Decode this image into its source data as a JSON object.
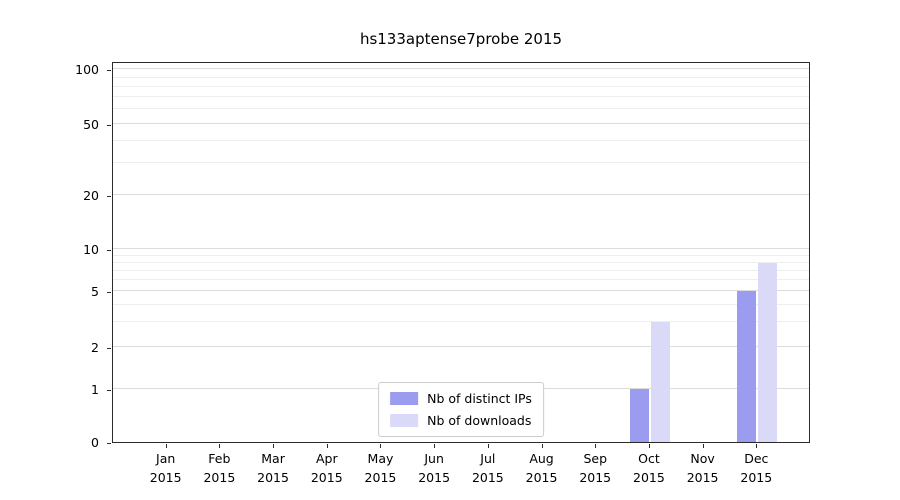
{
  "chart_data": {
    "type": "bar",
    "title": "hs133aptense7probe 2015",
    "categories": [
      "Jan",
      "Feb",
      "Mar",
      "Apr",
      "May",
      "Jun",
      "Jul",
      "Aug",
      "Sep",
      "Oct",
      "Nov",
      "Dec"
    ],
    "year_label": "2015",
    "series": [
      {
        "name": "Nb of distinct IPs",
        "color": "#9b9bf0",
        "values": [
          0,
          0,
          0,
          0,
          0,
          0,
          0,
          0,
          0,
          1,
          0,
          5
        ]
      },
      {
        "name": "Nb of downloads",
        "color": "#dadaf8",
        "values": [
          0,
          0,
          0,
          0,
          0,
          0,
          0,
          0,
          0,
          3,
          0,
          8
        ]
      }
    ],
    "y_ticks": [
      0,
      1,
      2,
      5,
      10,
      20,
      50,
      100
    ],
    "y_minor_ticks": [
      3,
      4,
      6,
      7,
      8,
      9,
      30,
      40,
      60,
      70,
      80,
      90
    ],
    "ylim": [
      0,
      100
    ],
    "scale": "log-like",
    "grid": "horizontal",
    "legend_position": "lower center"
  }
}
